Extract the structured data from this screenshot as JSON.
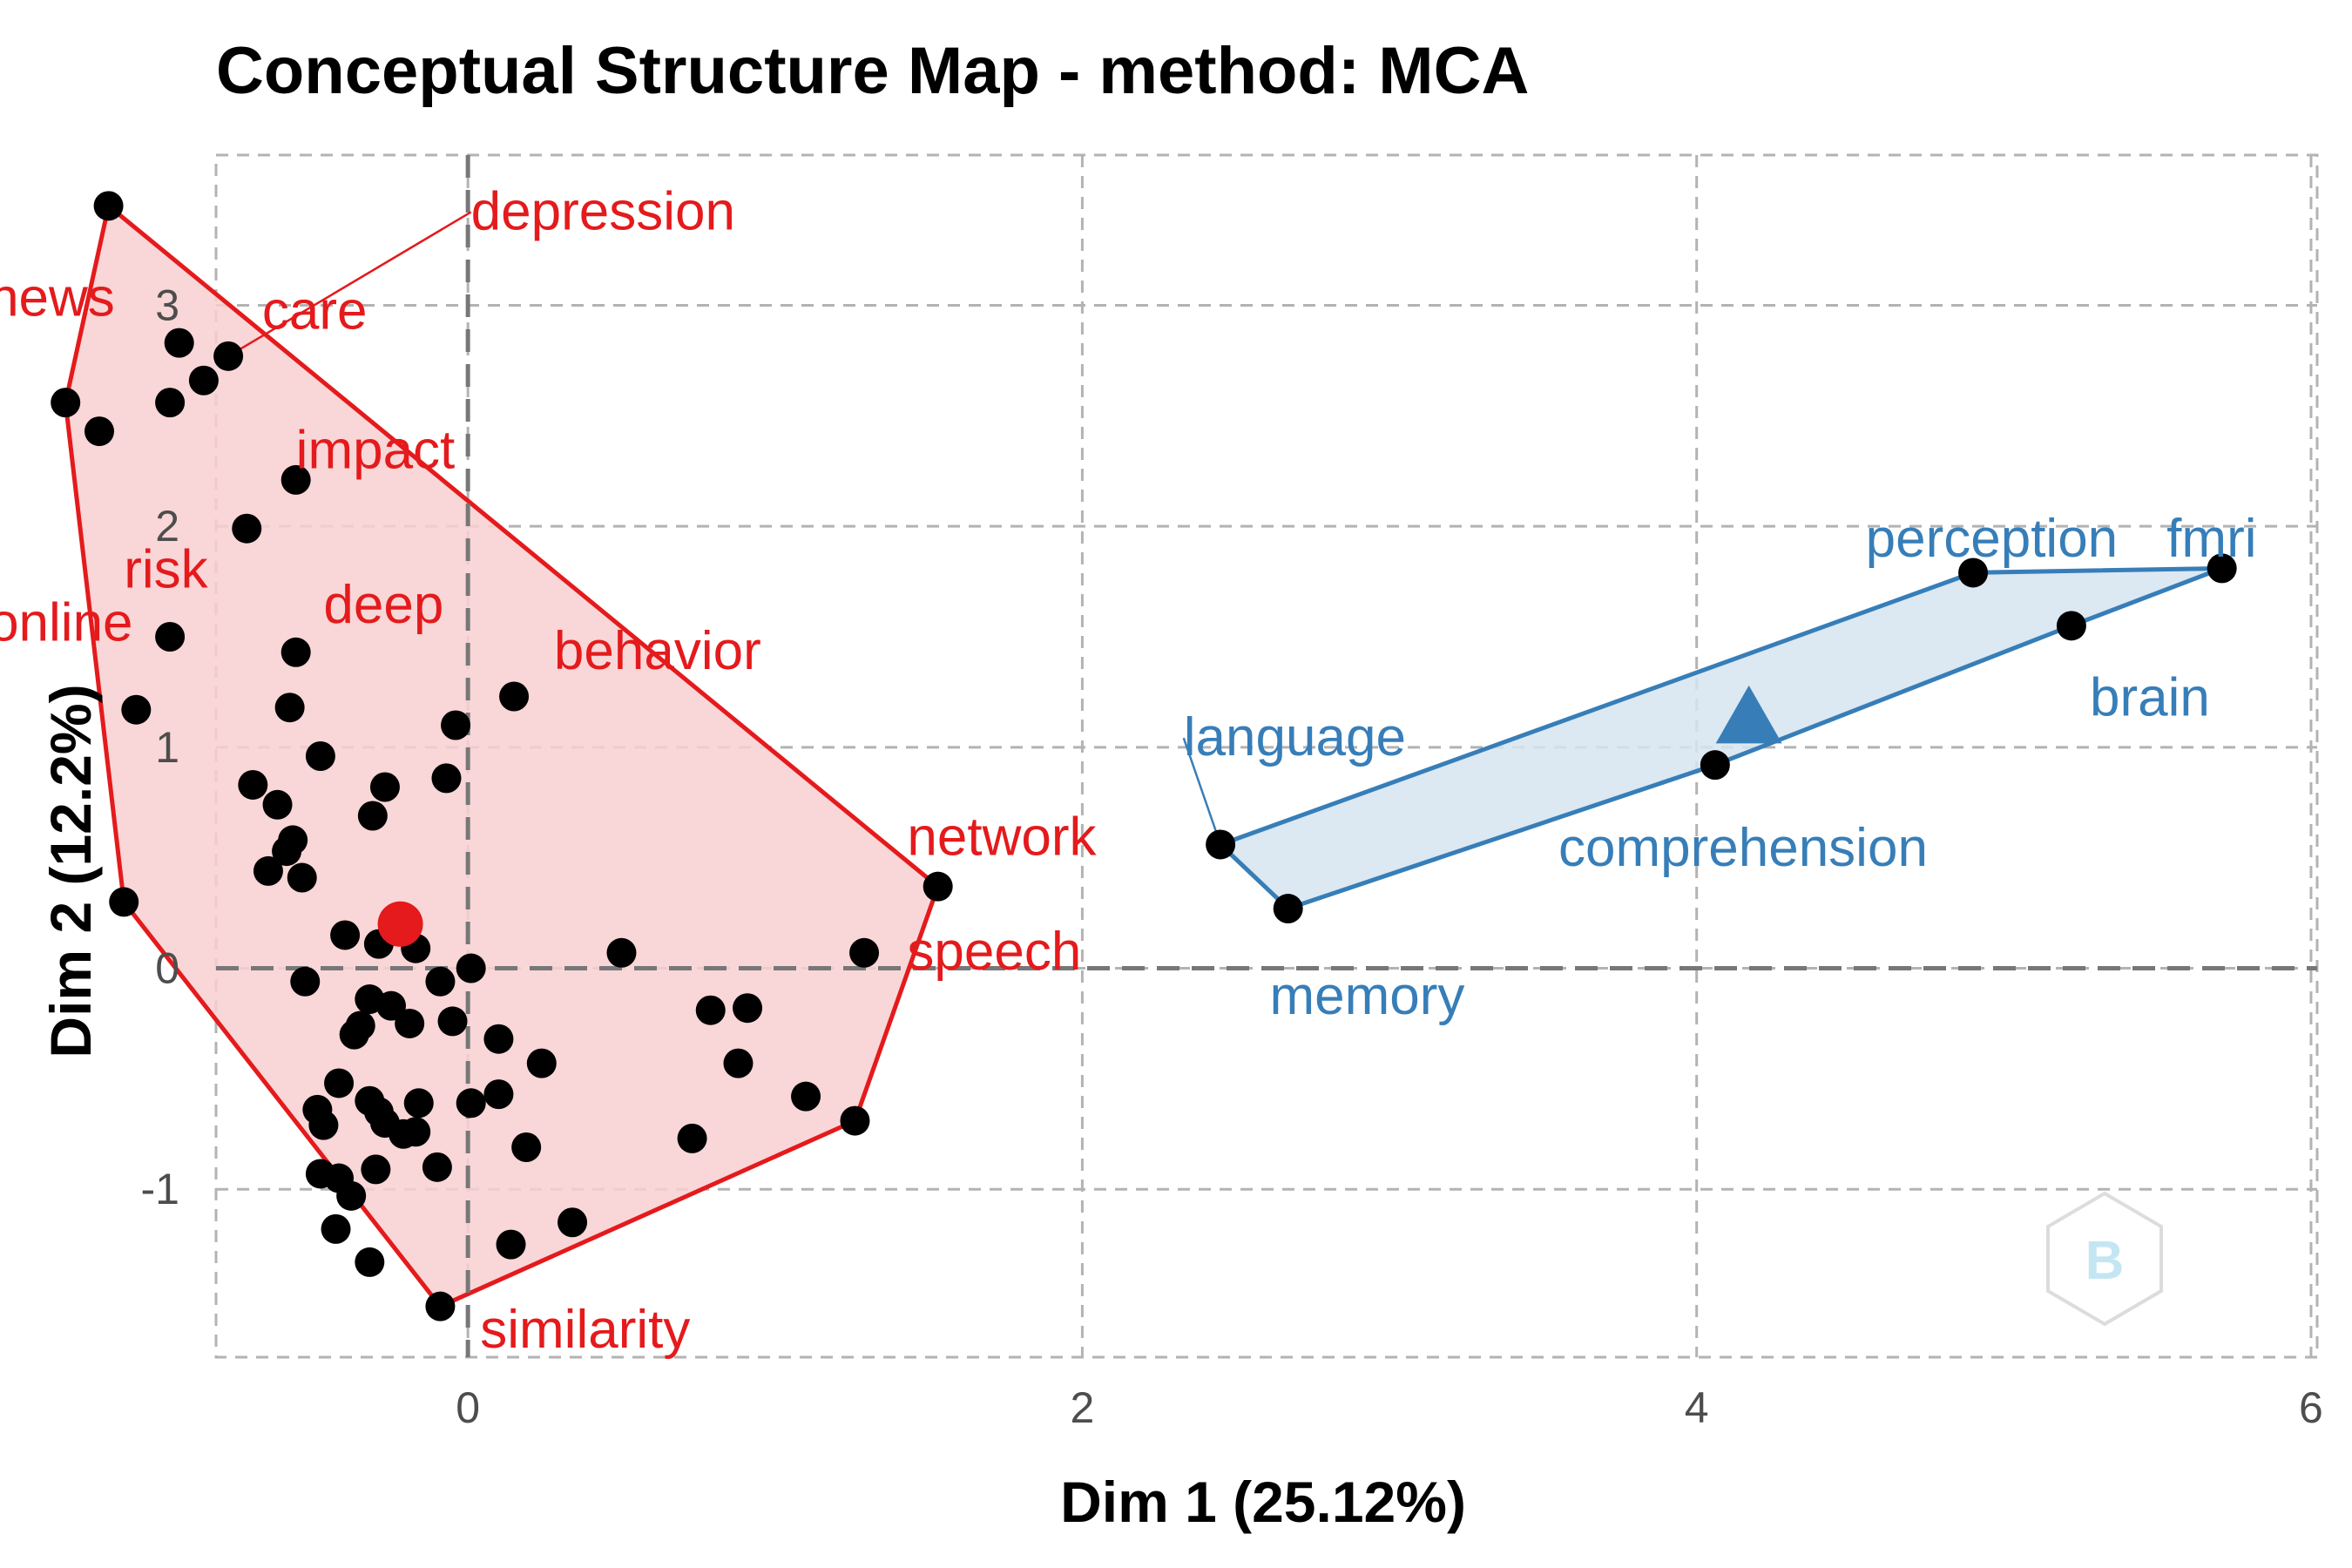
{
  "chart_data": {
    "type": "scatter",
    "title": "Conceptual Structure Map - method: MCA",
    "xlabel": "Dim 1 (25.12%)",
    "ylabel": "Dim 2 (12.2%)",
    "xlim": [
      -0.82,
      6.02
    ],
    "ylim": [
      -1.76,
      3.68
    ],
    "x_ticks": [
      0,
      2,
      4,
      6
    ],
    "y_ticks": [
      -1,
      0,
      1,
      2,
      3
    ],
    "grid": true,
    "clusters": [
      {
        "color": "#e41a1c",
        "fill": "#f8cfd0",
        "centroid": {
          "x": -0.22,
          "y": 0.2,
          "shape": "circle"
        },
        "hull": [
          [
            -1.17,
            3.45
          ],
          [
            -1.31,
            2.56
          ],
          [
            -1.12,
            0.3
          ],
          [
            -0.09,
            -1.53
          ],
          [
            1.26,
            -0.69
          ],
          [
            1.53,
            0.37
          ]
        ],
        "points": [
          [
            -1.17,
            3.45
          ],
          [
            -1.31,
            2.56
          ],
          [
            -1.2,
            2.43
          ],
          [
            -0.94,
            2.83
          ],
          [
            -0.78,
            2.77
          ],
          [
            -0.86,
            2.66
          ],
          [
            -0.97,
            2.56
          ],
          [
            -0.56,
            2.21
          ],
          [
            -0.72,
            1.99
          ],
          [
            -0.97,
            1.5
          ],
          [
            -1.08,
            1.17
          ],
          [
            -0.56,
            1.43
          ],
          [
            -0.58,
            1.18
          ],
          [
            -0.48,
            0.96
          ],
          [
            -0.04,
            1.1
          ],
          [
            0.15,
            1.23
          ],
          [
            -0.7,
            0.83
          ],
          [
            -0.62,
            0.74
          ],
          [
            -0.27,
            0.82
          ],
          [
            -0.31,
            0.69
          ],
          [
            -0.07,
            0.86
          ],
          [
            -0.57,
            0.58
          ],
          [
            -0.59,
            0.53
          ],
          [
            -0.65,
            0.44
          ],
          [
            -0.54,
            0.41
          ],
          [
            -1.12,
            0.3
          ],
          [
            0.5,
            0.07
          ],
          [
            1.29,
            0.07
          ],
          [
            1.53,
            0.37
          ],
          [
            -0.4,
            0.15
          ],
          [
            -0.29,
            0.11
          ],
          [
            -0.17,
            0.09
          ],
          [
            0.01,
            0.0
          ],
          [
            -0.09,
            -0.06
          ],
          [
            -0.53,
            -0.06
          ],
          [
            -0.32,
            -0.14
          ],
          [
            -0.25,
            -0.17
          ],
          [
            -0.35,
            -0.26
          ],
          [
            -0.37,
            -0.3
          ],
          [
            -0.19,
            -0.25
          ],
          [
            -0.05,
            -0.24
          ],
          [
            0.1,
            -0.32
          ],
          [
            0.24,
            -0.43
          ],
          [
            0.79,
            -0.19
          ],
          [
            0.91,
            -0.18
          ],
          [
            0.88,
            -0.43
          ],
          [
            1.1,
            -0.58
          ],
          [
            1.26,
            -0.69
          ],
          [
            0.73,
            -0.77
          ],
          [
            0.1,
            -0.57
          ],
          [
            0.01,
            -0.61
          ],
          [
            -0.42,
            -0.52
          ],
          [
            -0.32,
            -0.6
          ],
          [
            -0.29,
            -0.65
          ],
          [
            -0.16,
            -0.61
          ],
          [
            -0.49,
            -0.64
          ],
          [
            -0.27,
            -0.7
          ],
          [
            -0.17,
            -0.74
          ],
          [
            -0.21,
            -0.75
          ],
          [
            -0.47,
            -0.71
          ],
          [
            0.19,
            -0.81
          ],
          [
            -0.3,
            -0.91
          ],
          [
            -0.1,
            -0.9
          ],
          [
            -0.48,
            -0.93
          ],
          [
            -0.42,
            -0.95
          ],
          [
            -0.38,
            -1.03
          ],
          [
            -0.43,
            -1.18
          ],
          [
            -0.32,
            -1.33
          ],
          [
            0.34,
            -1.15
          ],
          [
            0.14,
            -1.25
          ],
          [
            -0.09,
            -1.53
          ]
        ],
        "labels": [
          {
            "text": "depression",
            "x": 0.01,
            "y": 3.43,
            "anchor": "start",
            "leader": true
          },
          {
            "text": "news",
            "x": -1.56,
            "y": 3.04,
            "anchor": "start"
          },
          {
            "text": "care",
            "x": -0.67,
            "y": 2.98,
            "anchor": "start"
          },
          {
            "text": "impact",
            "x": -0.56,
            "y": 2.35,
            "anchor": "start"
          },
          {
            "text": "risk",
            "x": -1.12,
            "y": 1.81,
            "anchor": "start"
          },
          {
            "text": "online",
            "x": -1.56,
            "y": 1.57,
            "anchor": "start"
          },
          {
            "text": "deep",
            "x": -0.47,
            "y": 1.65,
            "anchor": "start"
          },
          {
            "text": "behavior",
            "x": 0.28,
            "y": 1.44,
            "anchor": "start"
          },
          {
            "text": "network",
            "x": 1.43,
            "y": 0.6,
            "anchor": "start"
          },
          {
            "text": "speech",
            "x": 1.43,
            "y": 0.08,
            "anchor": "start"
          },
          {
            "text": "similarity",
            "x": 0.04,
            "y": -1.63,
            "anchor": "start"
          }
        ]
      },
      {
        "color": "#377eb8",
        "fill": "#d6e4f0",
        "centroid": {
          "x": 4.17,
          "y": 1.13,
          "shape": "triangle"
        },
        "hull": [
          [
            2.45,
            0.56
          ],
          [
            2.67,
            0.27
          ],
          [
            4.06,
            0.92
          ],
          [
            5.22,
            1.55
          ],
          [
            5.71,
            1.81
          ],
          [
            4.9,
            1.79
          ]
        ],
        "points": [
          [
            2.45,
            0.56
          ],
          [
            2.67,
            0.27
          ],
          [
            4.06,
            0.92
          ],
          [
            4.9,
            1.79
          ],
          [
            5.22,
            1.55
          ],
          [
            5.71,
            1.81
          ]
        ],
        "labels": [
          {
            "text": "perception",
            "x": 4.55,
            "y": 1.95,
            "anchor": "start"
          },
          {
            "text": "fmri",
            "x": 5.53,
            "y": 1.95,
            "anchor": "start"
          },
          {
            "text": "brain",
            "x": 5.28,
            "y": 1.23,
            "anchor": "start"
          },
          {
            "text": "language",
            "x": 2.33,
            "y": 1.05,
            "anchor": "start",
            "leader": true
          },
          {
            "text": "comprehension",
            "x": 3.55,
            "y": 0.55,
            "anchor": "start"
          },
          {
            "text": "memory",
            "x": 2.61,
            "y": -0.12,
            "anchor": "start"
          }
        ]
      }
    ]
  }
}
